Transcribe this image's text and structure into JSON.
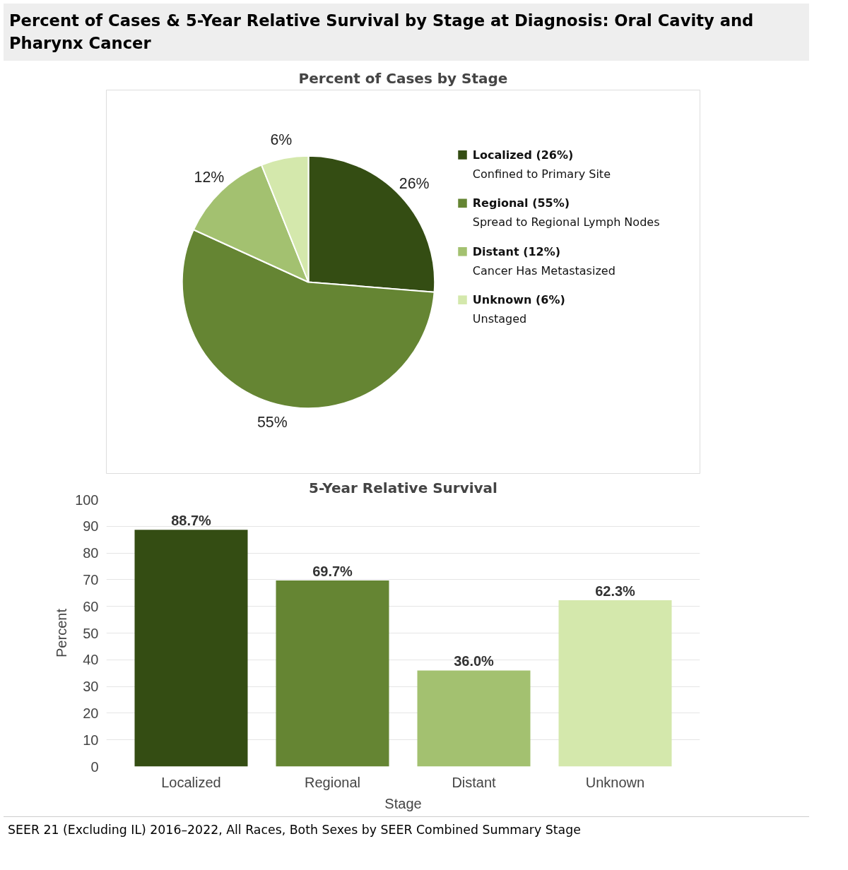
{
  "chart_data": [
    {
      "type": "pie",
      "title": "Percent of Cases & 5-Year Relative Survival by Stage at Diagnosis: Oral Cavity and Pharynx Cancer",
      "subtitle": "Percent of Cases by Stage",
      "categories": [
        "Localized (26%)",
        "Regional (55%)",
        "Distant (12%)",
        "Unknown (6%)"
      ],
      "values": [
        26,
        55,
        12,
        6
      ],
      "value_labels": [
        "26%",
        "55%",
        "12%",
        "6%"
      ],
      "colors": [
        "#344d13",
        "#658533",
        "#a3c170",
        "#d4e8ac"
      ],
      "annotations": [
        "Confined to Primary Site",
        "Spread to Regional Lymph Nodes",
        "Cancer Has Metastasized",
        "Unstaged"
      ],
      "legend": "right"
    },
    {
      "type": "bar",
      "title": "5-Year Relative Survival",
      "xlabel": "Stage",
      "ylabel": "Percent",
      "categories": [
        "Localized",
        "Regional",
        "Distant",
        "Unknown"
      ],
      "values": [
        88.7,
        69.7,
        36.0,
        62.3
      ],
      "value_labels": [
        "88.7%",
        "69.7%",
        "36.0%",
        "62.3%"
      ],
      "colors": [
        "#344d13",
        "#658533",
        "#a3c170",
        "#d4e8ac"
      ],
      "ylim": [
        0,
        100
      ],
      "yticks": [
        0,
        10,
        20,
        30,
        40,
        50,
        60,
        70,
        80,
        90,
        100
      ],
      "grid": "y",
      "annotations": [
        "SEER 21 (Excluding IL) 2016–2022, All Races, Both Sexes by SEER Combined Summary Stage"
      ]
    }
  ]
}
